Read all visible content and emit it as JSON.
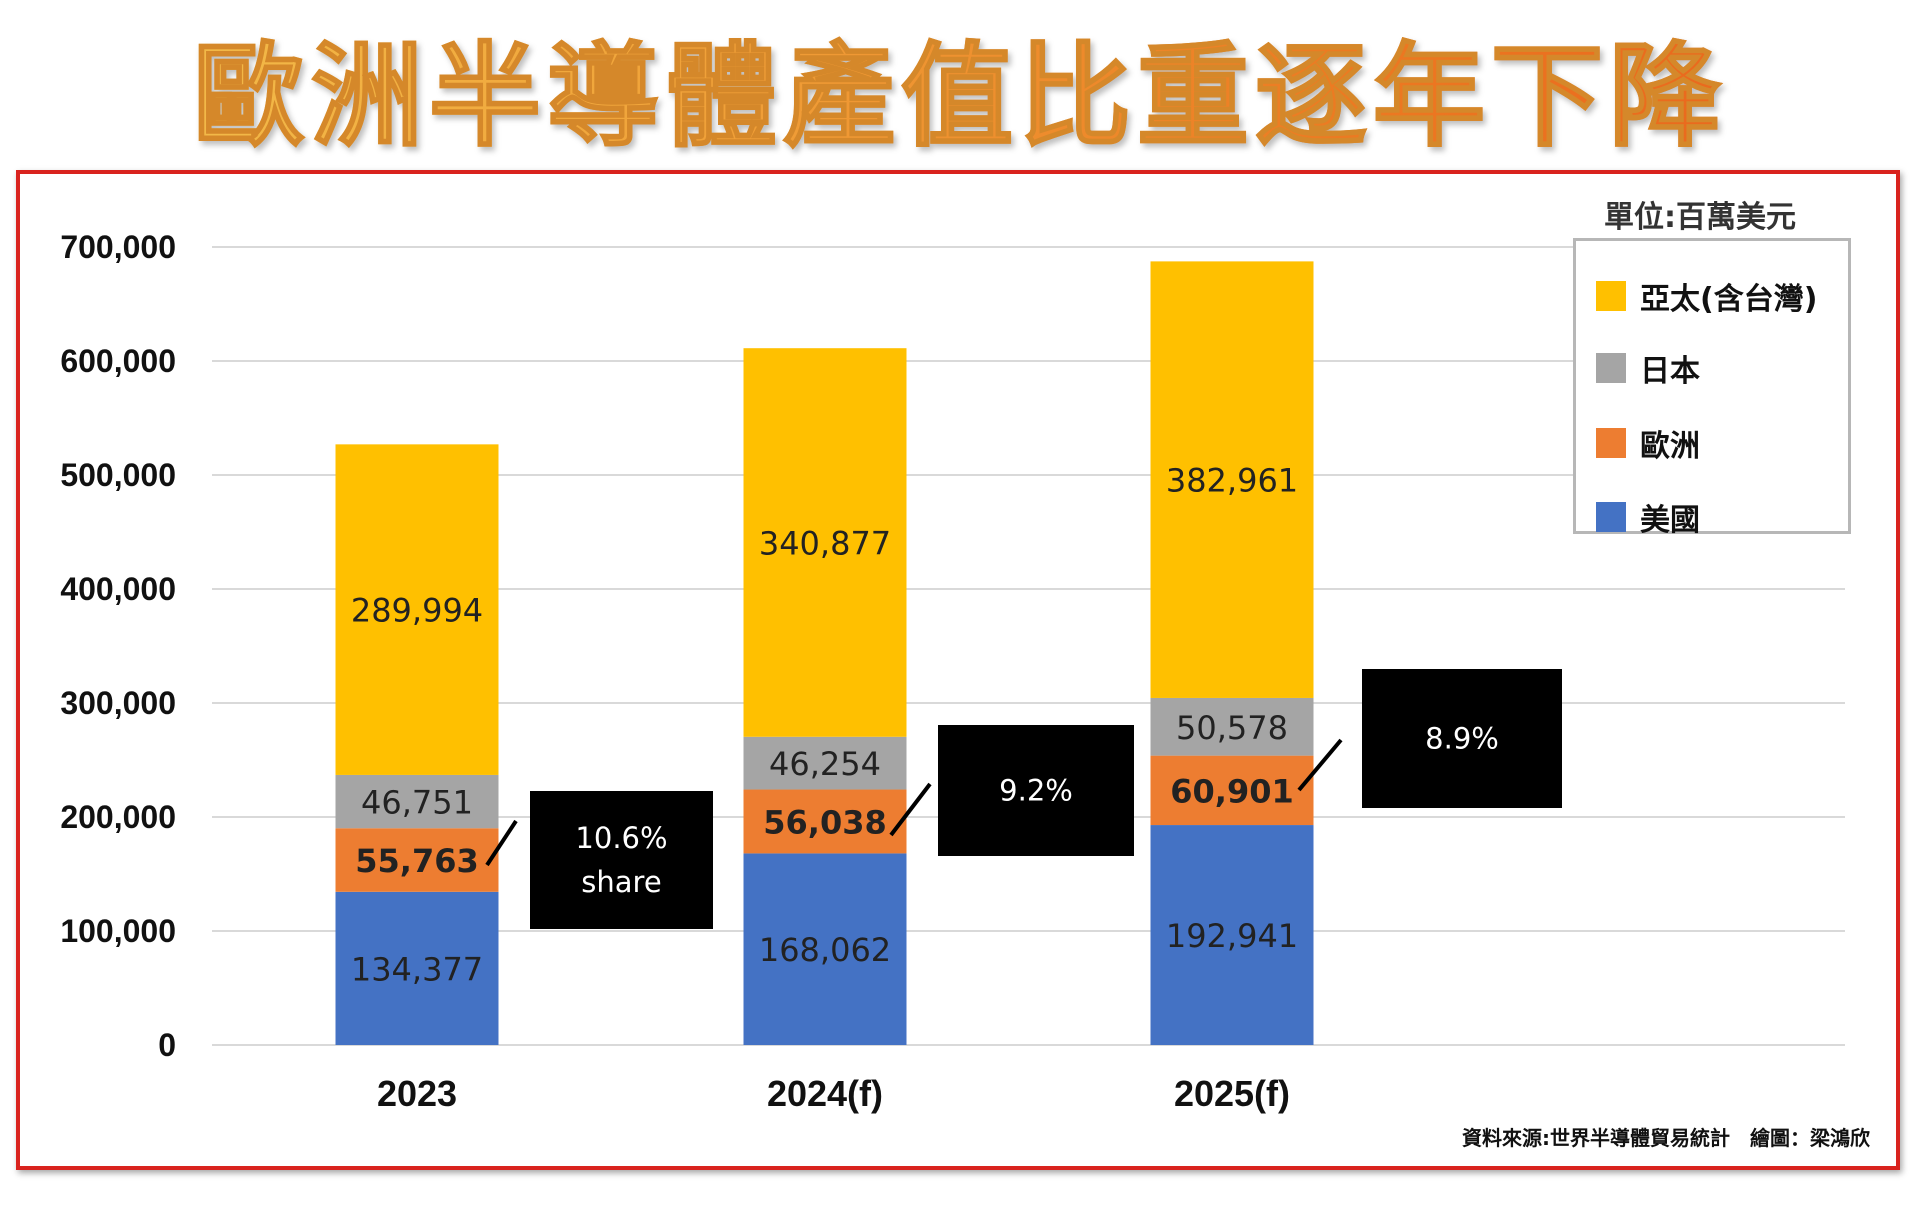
{
  "headline": "歐洲半導體產值比重逐年下降",
  "unit_label": "單位:百萬美元",
  "source_note": "資料來源:世界半導體貿易統計　繪圖：梁鴻欣",
  "colors": {
    "frame_border": "#d9231e",
    "asia": "#ffc000",
    "japan": "#a5a5a5",
    "europe": "#ed7d31",
    "usa": "#4472c4",
    "callout_bg": "#000000"
  },
  "chart_data": {
    "type": "bar",
    "stacked": true,
    "categories": [
      "2023",
      "2024(f)",
      "2025(f)"
    ],
    "series": [
      {
        "name": "美國",
        "color_key": "usa",
        "values": [
          134377,
          168062,
          192941
        ],
        "labels": [
          "134,377",
          "168,062",
          "192,941"
        ],
        "bold_labels": false
      },
      {
        "name": "歐洲",
        "color_key": "europe",
        "values": [
          55763,
          56038,
          60901
        ],
        "labels": [
          "55,763",
          "56,038",
          "60,901"
        ],
        "bold_labels": true
      },
      {
        "name": "日本",
        "color_key": "japan",
        "values": [
          46751,
          46254,
          50578
        ],
        "labels": [
          "46,751",
          "46,254",
          "50,578"
        ],
        "bold_labels": false
      },
      {
        "name": "亞太(含台灣)",
        "color_key": "asia",
        "values": [
          289994,
          340877,
          382961
        ],
        "labels": [
          "289,994",
          "340,877",
          "382,961"
        ],
        "bold_labels": false
      }
    ],
    "legend_order": [
      "亞太(含台灣)",
      "日本",
      "歐洲",
      "美國"
    ],
    "ylim": [
      0,
      700000
    ],
    "y_ticks": [
      0,
      100000,
      200000,
      300000,
      400000,
      500000,
      600000,
      700000
    ],
    "y_tick_labels": [
      "0",
      "100,000",
      "200,000",
      "300,000",
      "400,000",
      "500,000",
      "600,000",
      "700,000"
    ],
    "grid": true,
    "legend_position": "top-right",
    "annotations": [
      {
        "category": "2023",
        "lines": [
          "10.6%",
          "share"
        ]
      },
      {
        "category": "2024(f)",
        "lines": [
          "9.2%"
        ]
      },
      {
        "category": "2025(f)",
        "lines": [
          "8.9%"
        ]
      }
    ]
  }
}
